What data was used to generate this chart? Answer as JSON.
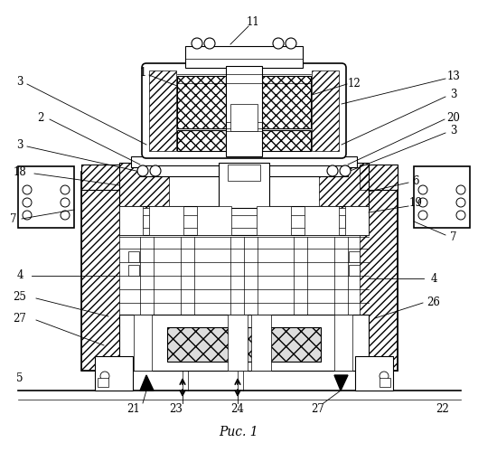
{
  "title": "Рис. 1",
  "bg_color": "#ffffff",
  "line_color": "#000000",
  "figsize": [
    5.29,
    5.0
  ],
  "dpi": 100
}
